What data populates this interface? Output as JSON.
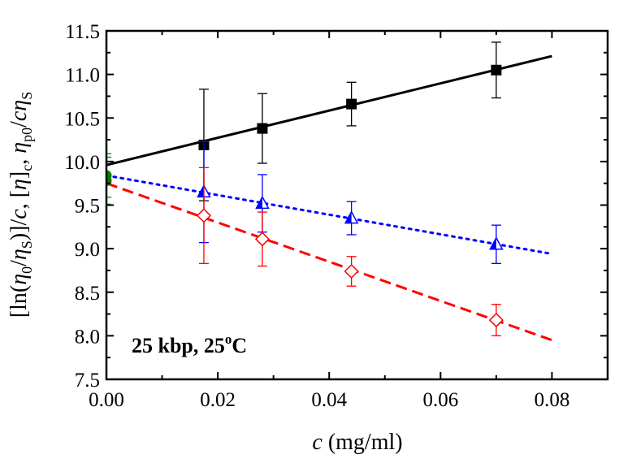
{
  "chart_data": {
    "type": "scatter",
    "title": "",
    "xlabel": {
      "var": "c",
      "unit": " (mg/ml)"
    },
    "ylabel": {
      "p1": "[ln(",
      "eta": "η",
      "sub0": "0",
      "slash": "/",
      "eta2": "η",
      "subS": "S",
      "p2": ")]/",
      "c1": "c",
      "p3": ", [",
      "eta3": "η",
      "p4": "]",
      "subc": "c",
      "p5": ", ",
      "eta4": "η",
      "subp0": "p0",
      "p6": "/",
      "c2": "c",
      "eta5": "η",
      "subS2": "S"
    },
    "xlim": [
      0,
      0.09
    ],
    "ylim": [
      7.5,
      11.5
    ],
    "x_ticks": [
      "0.00",
      "0.02",
      "0.04",
      "0.06",
      "0.08"
    ],
    "y_ticks": [
      "7.5",
      "8.0",
      "8.5",
      "9.0",
      "9.5",
      "10.0",
      "10.5",
      "11.0",
      "11.5"
    ],
    "annotation": {
      "text1": "25 kbp, 25",
      "sup": "o",
      "text2": "C",
      "color": "#800080"
    },
    "series": [
      {
        "marker": "filled-square",
        "color": "#000000",
        "x": [
          0.0175,
          0.028,
          0.044,
          0.07
        ],
        "y": [
          10.19,
          10.38,
          10.66,
          11.05
        ],
        "err": [
          0.64,
          0.4,
          0.25,
          0.32
        ],
        "fit": {
          "x": [
            0.0,
            0.08
          ],
          "y": [
            9.96,
            11.21
          ],
          "dash": "solid"
        }
      },
      {
        "marker": "half-filled-triangle",
        "color": "#0000ff",
        "x": [
          0.0175,
          0.028,
          0.044,
          0.07
        ],
        "y": [
          9.65,
          9.52,
          9.35,
          9.05
        ],
        "err": [
          0.58,
          0.33,
          0.19,
          0.22
        ],
        "fit": {
          "x": [
            0.0,
            0.08
          ],
          "y": [
            9.84,
            8.94
          ],
          "dash": "dot"
        }
      },
      {
        "marker": "open-diamond",
        "color": "#ff0000",
        "x": [
          0.0175,
          0.028,
          0.044,
          0.07
        ],
        "y": [
          9.38,
          9.11,
          8.74,
          8.18
        ],
        "err": [
          0.55,
          0.31,
          0.17,
          0.18
        ],
        "fit": {
          "x": [
            0.0,
            0.08
          ],
          "y": [
            9.75,
            7.95
          ],
          "dash": "dash"
        }
      },
      {
        "marker": "filled-circle",
        "color": "#008000",
        "x": [
          0.0,
          0.0
        ],
        "y": [
          9.84,
          9.78
        ],
        "err": [
          0.25,
          0.27
        ],
        "fit": null
      }
    ]
  }
}
